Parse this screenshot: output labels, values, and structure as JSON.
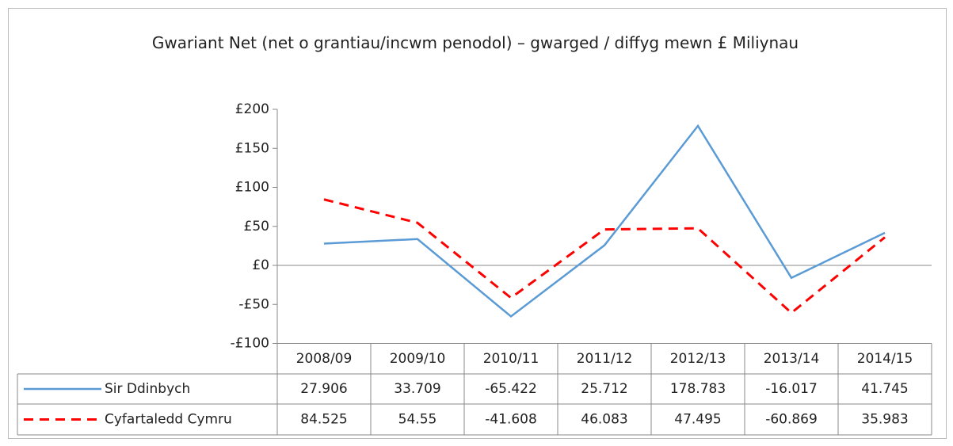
{
  "chart_data": {
    "type": "line",
    "title": "Gwariant Net (net o grantiau/incwm penodol) – gwarged / diffyg mewn £ Miliynau",
    "categories": [
      "2008/09",
      "2009/10",
      "2010/11",
      "2011/12",
      "2012/13",
      "2013/14",
      "2014/15"
    ],
    "series": [
      {
        "name": "Sir Ddinbych",
        "color": "#5b9bd5",
        "values": [
          27.906,
          33.709,
          -65.422,
          25.712,
          178.783,
          -16.017,
          41.745
        ]
      },
      {
        "name": "Cyfartaledd Cymru",
        "color": "#ff0000",
        "values": [
          84.525,
          54.55,
          -41.608,
          46.083,
          47.495,
          -60.869,
          35.983
        ]
      }
    ],
    "ylim": [
      -100,
      200
    ],
    "yticks": [
      {
        "value": -100,
        "label": "-£100"
      },
      {
        "value": -50,
        "label": "-£50"
      },
      {
        "value": 0,
        "label": "£0"
      },
      {
        "value": 50,
        "label": "£50"
      },
      {
        "value": 100,
        "label": "£100"
      },
      {
        "value": 150,
        "label": "£150"
      },
      {
        "value": 200,
        "label": "£200"
      }
    ]
  }
}
